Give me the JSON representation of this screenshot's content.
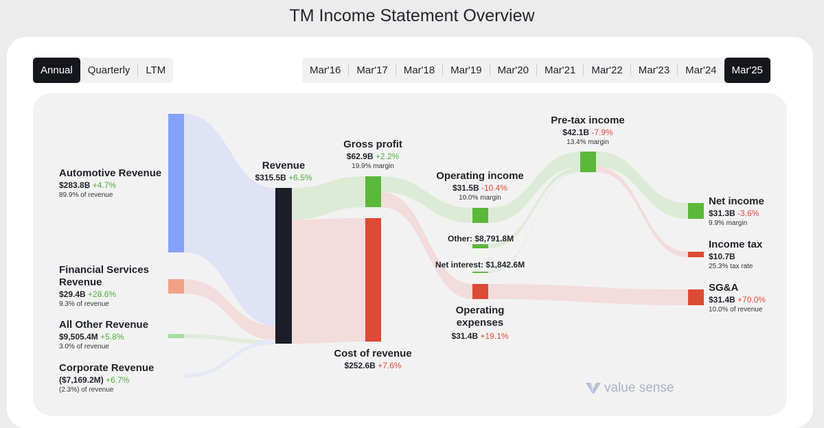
{
  "page": {
    "title": "TM Income Statement Overview"
  },
  "controls": {
    "view_tabs": [
      {
        "label": "Annual",
        "active": true
      },
      {
        "label": "Quarterly",
        "active": false
      },
      {
        "label": "LTM",
        "active": false
      }
    ],
    "periods": [
      {
        "label": "Mar'16",
        "active": false
      },
      {
        "label": "Mar'17",
        "active": false
      },
      {
        "label": "Mar'18",
        "active": false
      },
      {
        "label": "Mar'19",
        "active": false
      },
      {
        "label": "Mar'20",
        "active": false
      },
      {
        "label": "Mar'21",
        "active": false
      },
      {
        "label": "Mar'22",
        "active": false
      },
      {
        "label": "Mar'23",
        "active": false
      },
      {
        "label": "Mar'24",
        "active": false
      },
      {
        "label": "Mar'25",
        "active": true
      }
    ]
  },
  "brand": {
    "name": "value sense"
  },
  "colors": {
    "revenue_node": "#1b1e27",
    "automotive": "#84a2f8",
    "financial": "#f1a185",
    "other_rev": "#a4dfa0",
    "corporate": "#c7cbf2",
    "profit": "#5bb83a",
    "cost": "#dd4a35",
    "flow_blue": "#dfe3f6",
    "flow_red": "#f3dcdc",
    "flow_green": "#dcebd6"
  },
  "chart_data": {
    "type": "sankey",
    "title": "TM Income Statement Overview",
    "nodes": [
      {
        "id": "automotive",
        "name": "Automotive Revenue",
        "value": "$283.8B",
        "change": "+4.7%",
        "direction": "up",
        "note": "89.9% of revenue"
      },
      {
        "id": "financial",
        "name": "Financial Services Revenue",
        "value": "$29.4B",
        "change": "+28.6%",
        "direction": "up",
        "note": "9.3% of revenue"
      },
      {
        "id": "other_rev",
        "name": "All Other Revenue",
        "value": "$9,505.4M",
        "change": "+5.8%",
        "direction": "up",
        "note": "3.0% of revenue"
      },
      {
        "id": "corporate",
        "name": "Corporate Revenue",
        "value": "($7,169.2M)",
        "change": "+6.7%",
        "direction": "up",
        "note": "(2.3%) of revenue"
      },
      {
        "id": "revenue",
        "name": "Revenue",
        "value": "$315.5B",
        "change": "+6.5%",
        "direction": "up",
        "note": ""
      },
      {
        "id": "gross_profit",
        "name": "Gross profit",
        "value": "$62.9B",
        "change": "+2.2%",
        "direction": "up",
        "note": "19.9% margin"
      },
      {
        "id": "cost_of_revenue",
        "name": "Cost of revenue",
        "value": "$252.6B",
        "change": "+7.6%",
        "direction": "up-bad",
        "note": ""
      },
      {
        "id": "operating_income",
        "name": "Operating income",
        "value": "$31.5B",
        "change": "-10.4%",
        "direction": "down",
        "note": "10.0% margin"
      },
      {
        "id": "other",
        "name": "Other",
        "value": "$8,791.8M",
        "change": "",
        "direction": "",
        "note": ""
      },
      {
        "id": "net_interest",
        "name": "Net interest",
        "value": "$1,842.6M",
        "change": "",
        "direction": "",
        "note": ""
      },
      {
        "id": "operating_expenses",
        "name": "Operating expenses",
        "value": "$31.4B",
        "change": "+19.1%",
        "direction": "up-bad",
        "note": ""
      },
      {
        "id": "pretax_income",
        "name": "Pre-tax income",
        "value": "$42.1B",
        "change": "-7.9%",
        "direction": "down",
        "note": "13.4% margin"
      },
      {
        "id": "net_income",
        "name": "Net income",
        "value": "$31.3B",
        "change": "-3.6%",
        "direction": "down",
        "note": "9.9% margin"
      },
      {
        "id": "income_tax",
        "name": "Income tax",
        "value": "$10.7B",
        "change": "",
        "direction": "",
        "note": "25.3% tax rate"
      },
      {
        "id": "sga",
        "name": "SG&A",
        "value": "$31.4B",
        "change": "+70.0%",
        "direction": "up-bad",
        "note": "10.0% of revenue"
      }
    ],
    "links": [
      {
        "source": "automotive",
        "target": "revenue",
        "value_b": 283.8
      },
      {
        "source": "financial",
        "target": "revenue",
        "value_b": 29.4
      },
      {
        "source": "other_rev",
        "target": "revenue",
        "value_b": 9.5
      },
      {
        "source": "corporate",
        "target": "revenue",
        "value_b": -7.2
      },
      {
        "source": "revenue",
        "target": "gross_profit",
        "value_b": 62.9
      },
      {
        "source": "revenue",
        "target": "cost_of_revenue",
        "value_b": 252.6
      },
      {
        "source": "gross_profit",
        "target": "operating_income",
        "value_b": 31.5
      },
      {
        "source": "gross_profit",
        "target": "operating_expenses",
        "value_b": 31.4
      },
      {
        "source": "operating_income",
        "target": "pretax_income",
        "value_b": 31.5
      },
      {
        "source": "other",
        "target": "pretax_income",
        "value_b": 8.8
      },
      {
        "source": "net_interest",
        "target": "pretax_income",
        "value_b": 1.8
      },
      {
        "source": "pretax_income",
        "target": "net_income",
        "value_b": 31.3
      },
      {
        "source": "pretax_income",
        "target": "income_tax",
        "value_b": 10.7
      },
      {
        "source": "operating_expenses",
        "target": "sga",
        "value_b": 31.4
      }
    ]
  }
}
